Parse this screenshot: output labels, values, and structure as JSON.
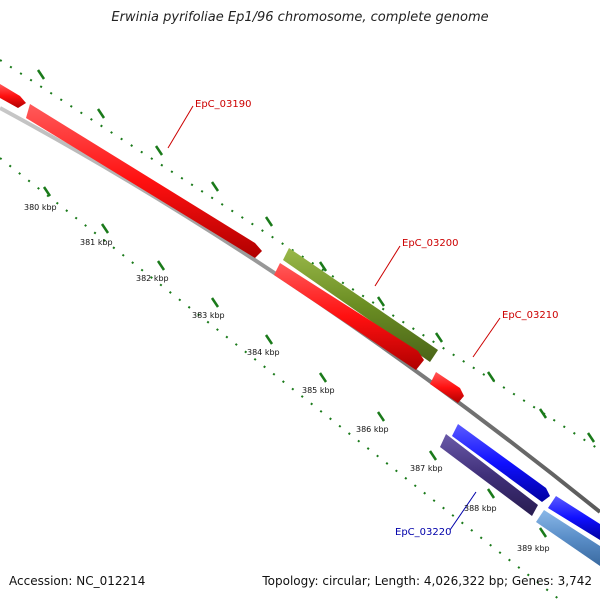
{
  "title": "Erwinia pyrifoliae Ep1/96 chromosome, complete genome",
  "accession_text": "Accession: NC_012214",
  "summary_text": "Topology: circular; Length: 4,026,322 bp; Genes: 3,742",
  "colors": {
    "backbone": "#8a8a8a",
    "tick_green": "#1a7a1a",
    "gene_red": "#ff1010",
    "gene_olive": "#6b8e23",
    "gene_blue": "#1010ff",
    "gene_purple": "#40307a",
    "gene_steel": "#5a8ec8",
    "label_red": "#cc0000",
    "label_blue": "#0000aa"
  },
  "scale_labels": [
    "380 kbp",
    "381 kbp",
    "382 kbp",
    "383 kbp",
    "384 kbp",
    "385 kbp",
    "386 kbp",
    "387 kbp",
    "388 kbp",
    "389 kbp"
  ],
  "gene_labels": [
    {
      "text": "EpC_03190",
      "color": "red"
    },
    {
      "text": "EpC_03200",
      "color": "red"
    },
    {
      "text": "EpC_03210",
      "color": "red"
    },
    {
      "text": "EpC_03220",
      "color": "blue"
    }
  ]
}
